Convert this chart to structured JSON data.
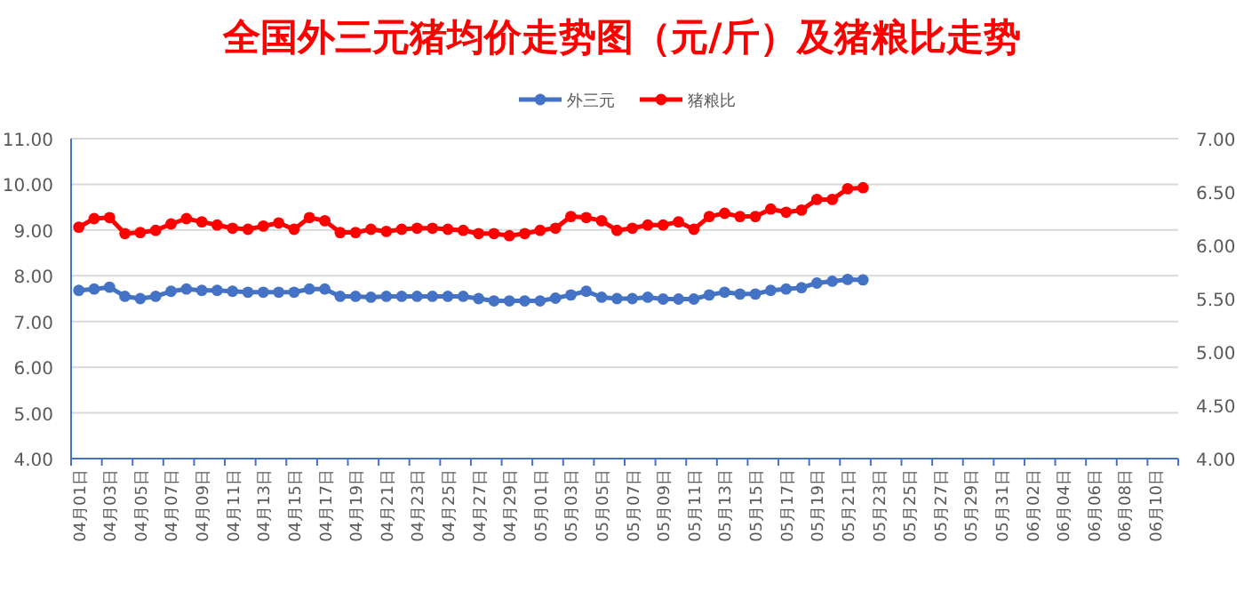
{
  "chart_data": {
    "type": "line",
    "title": "全国外三元猪均价走势图（元/斤）及猪粮比走势",
    "categories": [
      "04月01日",
      null,
      "04月03日",
      null,
      "04月05日",
      null,
      "04月07日",
      null,
      "04月09日",
      null,
      "04月11日",
      null,
      "04月13日",
      null,
      "04月15日",
      null,
      "04月17日",
      null,
      "04月19日",
      null,
      "04月21日",
      null,
      "04月23日",
      null,
      "04月25日",
      null,
      "04月27日",
      null,
      "04月29日",
      null,
      "05月01日",
      null,
      "05月03日",
      null,
      "05月05日",
      null,
      "05月07日",
      null,
      "05月09日",
      null,
      "05月11日",
      null,
      "05月13日",
      null,
      "05月15日",
      null,
      "05月17日",
      null,
      "05月19日",
      null,
      "05月21日",
      null,
      "05月23日",
      null,
      "05月25日",
      null,
      "05月27日",
      null,
      "05月29日",
      null,
      "05月31日",
      null,
      "06月02日",
      null,
      "06月04日",
      null,
      "06月06日",
      null,
      "06月08日",
      null,
      "06月10日",
      null
    ],
    "series": [
      {
        "name": "外三元",
        "color": "#4472c4",
        "values": [
          7.68,
          7.71,
          7.75,
          7.55,
          7.5,
          7.55,
          7.66,
          7.71,
          7.68,
          7.68,
          7.66,
          7.64,
          7.64,
          7.64,
          7.64,
          7.71,
          7.71,
          7.55,
          7.55,
          7.53,
          7.55,
          7.55,
          7.55,
          7.55,
          7.55,
          7.55,
          7.5,
          7.45,
          7.45,
          7.45,
          7.45,
          7.51,
          7.58,
          7.66,
          7.53,
          7.5,
          7.5,
          7.53,
          7.49,
          7.49,
          7.49,
          7.58,
          7.64,
          7.6,
          7.6,
          7.68,
          7.71,
          7.74,
          7.84,
          7.88,
          7.92,
          7.91,
          null,
          null,
          null,
          null,
          null,
          null,
          null,
          null,
          null,
          null,
          null,
          null,
          null,
          null,
          null,
          null,
          null,
          null,
          null,
          null
        ]
      },
      {
        "name": "猪粮比",
        "color": "#ff0000",
        "axis": "y2",
        "values": [
          6.17,
          6.25,
          6.26,
          6.11,
          6.12,
          6.14,
          6.2,
          6.25,
          6.22,
          6.19,
          6.16,
          6.15,
          6.18,
          6.21,
          6.15,
          6.26,
          6.23,
          6.12,
          6.12,
          6.15,
          6.13,
          6.15,
          6.16,
          6.16,
          6.15,
          6.14,
          6.11,
          6.11,
          6.09,
          6.11,
          6.14,
          6.16,
          6.27,
          6.26,
          6.23,
          6.14,
          6.16,
          6.19,
          6.19,
          6.22,
          6.15,
          6.27,
          6.3,
          6.27,
          6.27,
          6.34,
          6.31,
          6.33,
          6.43,
          6.43,
          6.53,
          6.54,
          null,
          null,
          null,
          null,
          null,
          null,
          null,
          null,
          null,
          null,
          null,
          null,
          null,
          null,
          null,
          null,
          null,
          null,
          null,
          null
        ]
      }
    ],
    "ylim": [
      4,
      11
    ],
    "yticks": [
      {
        "value": 4,
        "label": "4.00"
      },
      {
        "value": 5,
        "label": "5.00"
      },
      {
        "value": 6,
        "label": "6.00"
      },
      {
        "value": 7,
        "label": "7.00"
      },
      {
        "value": 8,
        "label": "8.00"
      },
      {
        "value": 9,
        "label": "9.00"
      },
      {
        "value": 10,
        "label": "10.00"
      },
      {
        "value": 11,
        "label": "11.00"
      }
    ],
    "y2lim": [
      4,
      7
    ],
    "y2ticks": [
      {
        "value": 4,
        "label": "4.00"
      },
      {
        "value": 4.5,
        "label": "4.50"
      },
      {
        "value": 5,
        "label": "5.00"
      },
      {
        "value": 5.5,
        "label": "5.50"
      },
      {
        "value": 6,
        "label": "6.00"
      },
      {
        "value": 6.5,
        "label": "6.50"
      },
      {
        "value": 7,
        "label": "7.00"
      }
    ],
    "grid": "y",
    "legend": "top",
    "marker": "circle",
    "line_style": "solid"
  }
}
